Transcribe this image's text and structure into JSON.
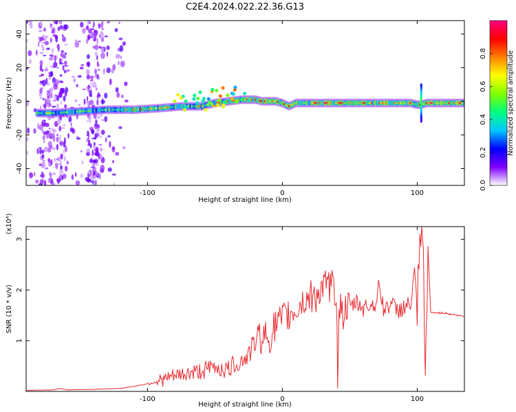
{
  "title": "C2E4.2024.022.22.36.G13",
  "chart_data": [
    {
      "type": "heatmap",
      "xlabel": "Height of straight line (km)",
      "ylabel": "Frequency (Hz)",
      "xlim": [
        -190,
        135
      ],
      "ylim": [
        -50,
        48
      ],
      "xticks": [
        -100,
        0,
        100
      ],
      "yticks": [
        -40,
        -20,
        0,
        20,
        40
      ],
      "grid": false,
      "colorbar": {
        "label": "Normalized spectral amplitude",
        "range": [
          0,
          1
        ],
        "ticks": [
          0.0,
          0.2,
          0.4,
          0.6,
          0.8
        ],
        "colormap": [
          "#ffffff",
          "#7f00ff",
          "#0000ff",
          "#00c8ff",
          "#00ff80",
          "#80ff00",
          "#ffff00",
          "#ff8000",
          "#ff0000",
          "#ff0080"
        ]
      },
      "ridge": {
        "x": [
          -190,
          -170,
          -150,
          -130,
          -110,
          -90,
          -75,
          -60,
          -50,
          -40,
          -30,
          -20,
          -15,
          -10,
          -5,
          0,
          5,
          10,
          20,
          40,
          60,
          80,
          95,
          100,
          103,
          107,
          115,
          125,
          135
        ],
        "y": [
          -7,
          -7,
          -6,
          -5,
          -5,
          -4,
          -3,
          -3,
          -1,
          0,
          1,
          1,
          0,
          0,
          0,
          -1,
          -3,
          -1,
          -1,
          -1,
          -1,
          -1,
          -1,
          -2,
          -2,
          -1,
          -1,
          -1,
          -1
        ]
      }
    },
    {
      "type": "line",
      "xlabel": "Height of straight line (km)",
      "ylabel": "SNR (10 * v/v)",
      "y_multiplier": "(x10⁴)",
      "xlim": [
        -190,
        135
      ],
      "ylim": [
        0,
        3.25
      ],
      "xticks": [
        -100,
        0,
        100
      ],
      "yticks": [
        1,
        2,
        3
      ],
      "grid": false,
      "color": "#e8282e",
      "series": [
        {
          "x": [
            -190,
            -170,
            -165,
            -160,
            -140,
            -120,
            -110,
            -100,
            -90,
            -80,
            -70,
            -60,
            -50,
            -45,
            -40,
            -35,
            -30,
            -25,
            -20,
            -15,
            -10,
            -5,
            0,
            5,
            10,
            15,
            20,
            25,
            30,
            35,
            40,
            41,
            42,
            45,
            50,
            55,
            60,
            65,
            70,
            72,
            75,
            80,
            85,
            90,
            95,
            98,
            100,
            102,
            104,
            106,
            108,
            110,
            115,
            120,
            125,
            130,
            135
          ],
          "y": [
            0.02,
            0.03,
            0.06,
            0.03,
            0.04,
            0.06,
            0.1,
            0.15,
            0.22,
            0.3,
            0.35,
            0.4,
            0.48,
            0.45,
            0.42,
            0.55,
            0.6,
            0.72,
            1.0,
            1.1,
            1.05,
            1.3,
            1.4,
            1.5,
            1.6,
            1.75,
            1.85,
            1.9,
            2.0,
            2.1,
            1.95,
            0.35,
            1.7,
            1.55,
            1.65,
            1.75,
            1.65,
            1.7,
            1.75,
            2.15,
            1.6,
            1.75,
            1.6,
            1.65,
            1.7,
            2.3,
            1.6,
            2.6,
            3.25,
            0.2,
            2.85,
            1.55,
            1.55,
            1.55,
            1.52,
            1.5,
            1.48
          ]
        }
      ]
    }
  ]
}
